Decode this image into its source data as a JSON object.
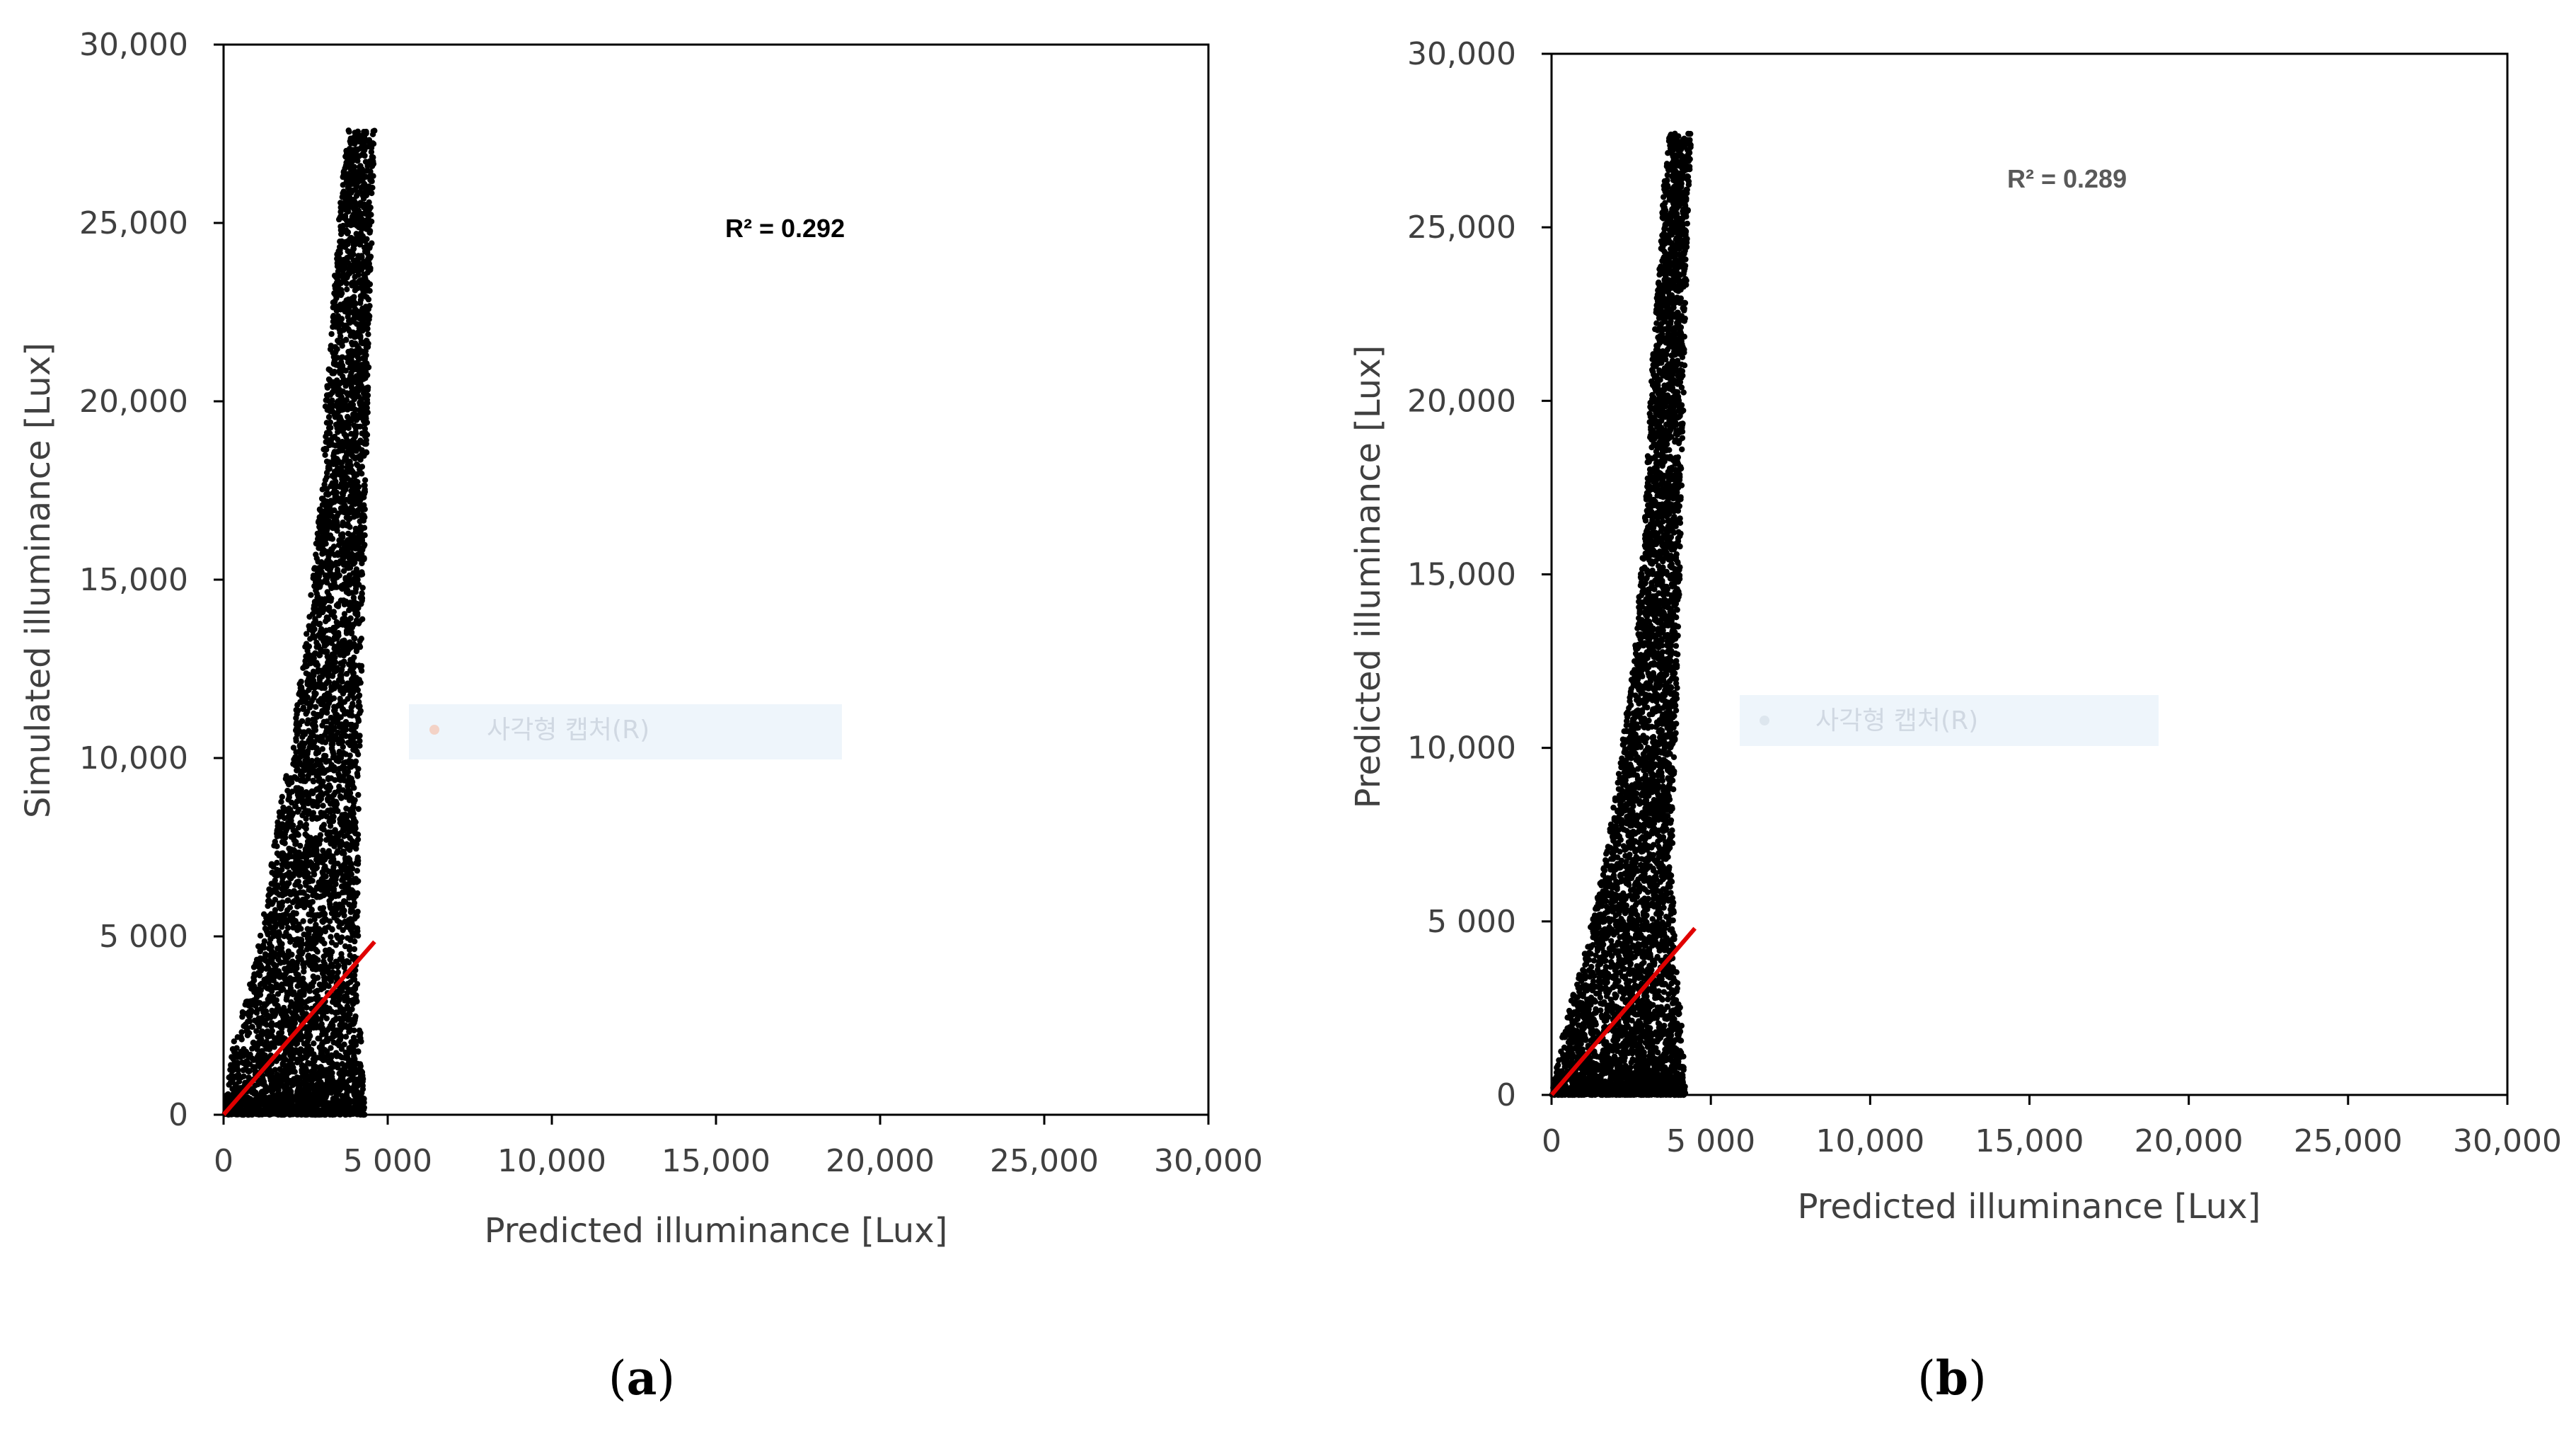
{
  "chart_data": [
    {
      "type": "scatter",
      "panel_label": "a",
      "xlabel": "Predicted illuminance [Lux]",
      "ylabel": "Simulated illuminance [Lux]",
      "xlim": [
        0,
        30000
      ],
      "ylim": [
        0,
        30000
      ],
      "x_tick_labels": [
        "0",
        "5 000",
        "10,000",
        "15,000",
        "20,000",
        "25,000",
        "30,000"
      ],
      "y_tick_labels": [
        "0",
        "5 000",
        "10,000",
        "15,000",
        "20,000",
        "25,000",
        "30,000"
      ],
      "annotation": "R² = 0.292",
      "annotation_color": "#000000",
      "ghost_legend": "사각형 캡처(R)",
      "marker_color": "#000000",
      "fit_line": {
        "color": "#e00000",
        "x": [
          0,
          4600
        ],
        "y": [
          0,
          4850
        ]
      },
      "cloud_envelope": [
        {
          "y": 0,
          "xmin": 0,
          "xmax": 4300
        },
        {
          "y": 2000,
          "xmin": 300,
          "xmax": 4200
        },
        {
          "y": 4000,
          "xmin": 900,
          "xmax": 4100
        },
        {
          "y": 6000,
          "xmin": 1300,
          "xmax": 4100
        },
        {
          "y": 8000,
          "xmin": 1600,
          "xmax": 4100
        },
        {
          "y": 10000,
          "xmin": 2000,
          "xmax": 4150
        },
        {
          "y": 12000,
          "xmin": 2300,
          "xmax": 4200
        },
        {
          "y": 14000,
          "xmin": 2600,
          "xmax": 4250
        },
        {
          "y": 16000,
          "xmin": 2800,
          "xmax": 4300
        },
        {
          "y": 18000,
          "xmin": 3000,
          "xmax": 4350
        },
        {
          "y": 20000,
          "xmin": 3100,
          "xmax": 4400
        },
        {
          "y": 22000,
          "xmin": 3300,
          "xmax": 4450
        },
        {
          "y": 24000,
          "xmin": 3400,
          "xmax": 4500
        },
        {
          "y": 26000,
          "xmin": 3600,
          "xmax": 4550
        },
        {
          "y": 27600,
          "xmin": 3800,
          "xmax": 4600
        }
      ]
    },
    {
      "type": "scatter",
      "panel_label": "b",
      "xlabel": "Predicted illuminance [Lux]",
      "ylabel": "Predicted illuminance [Lux]",
      "xlim": [
        0,
        30000
      ],
      "ylim": [
        0,
        30000
      ],
      "x_tick_labels": [
        "0",
        "5 000",
        "10,000",
        "15,000",
        "20,000",
        "25,000",
        "30,000"
      ],
      "y_tick_labels": [
        "0",
        "5 000",
        "10,000",
        "15,000",
        "20,000",
        "25,000",
        "30,000"
      ],
      "annotation": "R² = 0.289",
      "annotation_color": "#595959",
      "ghost_legend": "사각형 캡처(R)",
      "marker_color": "#000000",
      "fit_line": {
        "color": "#e00000",
        "x": [
          0,
          4500
        ],
        "y": [
          0,
          4800
        ]
      },
      "cloud_envelope": [
        {
          "y": 0,
          "xmin": 0,
          "xmax": 4200
        },
        {
          "y": 2000,
          "xmin": 400,
          "xmax": 4100
        },
        {
          "y": 4000,
          "xmin": 1000,
          "xmax": 3900
        },
        {
          "y": 6000,
          "xmin": 1500,
          "xmax": 3800
        },
        {
          "y": 8000,
          "xmin": 1900,
          "xmax": 3800
        },
        {
          "y": 10000,
          "xmin": 2200,
          "xmax": 3900
        },
        {
          "y": 12000,
          "xmin": 2500,
          "xmax": 3950
        },
        {
          "y": 14000,
          "xmin": 2700,
          "xmax": 4000
        },
        {
          "y": 16000,
          "xmin": 2900,
          "xmax": 4050
        },
        {
          "y": 18000,
          "xmin": 3000,
          "xmax": 4100
        },
        {
          "y": 20000,
          "xmin": 3100,
          "xmax": 4150
        },
        {
          "y": 22000,
          "xmin": 3200,
          "xmax": 4200
        },
        {
          "y": 24000,
          "xmin": 3400,
          "xmax": 4250
        },
        {
          "y": 26000,
          "xmin": 3500,
          "xmax": 4300
        },
        {
          "y": 27700,
          "xmin": 3700,
          "xmax": 4400
        }
      ]
    }
  ]
}
